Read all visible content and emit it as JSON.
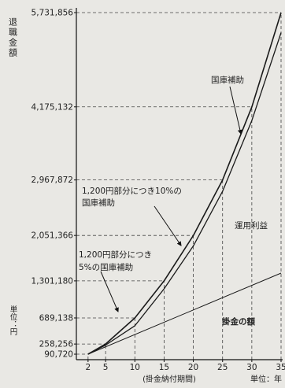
{
  "chart_data": {
    "type": "line",
    "ylabel": "退職金額",
    "ylabel_unit": "単位：円",
    "xlabel": "掛金納付期間",
    "xlabel_unit": "単位：年",
    "xlim": [
      0,
      35
    ],
    "ylim": [
      0,
      5731856
    ],
    "x_ticks": [
      2,
      5,
      10,
      15,
      20,
      25,
      30,
      35
    ],
    "x_tick_labels": [
      "2",
      "5",
      "10",
      "15",
      "20",
      "25",
      "30",
      "35"
    ],
    "y_ticks": [
      {
        "value": 90720,
        "label": "90,720"
      },
      {
        "value": 258256,
        "label": "258,256"
      },
      {
        "value": 689138,
        "label": "689,138"
      },
      {
        "value": 1301180,
        "label": "1,301,180"
      },
      {
        "value": 2051366,
        "label": "2,051,366"
      },
      {
        "value": 2967872,
        "label": "2,967,872"
      },
      {
        "value": 4175132,
        "label": "4,175,132"
      },
      {
        "value": 5731856,
        "label": "5,731,856"
      }
    ],
    "grid": "dashed guides at tick values",
    "series": [
      {
        "values": [
          [
            2,
            90720
          ],
          [
            5,
            258256
          ],
          [
            10,
            689138
          ],
          [
            15,
            1301180
          ],
          [
            20,
            2051366
          ],
          [
            25,
            2967872
          ],
          [
            30,
            4175132
          ],
          [
            35,
            5731856
          ]
        ]
      },
      {
        "values": [
          [
            2,
            90720
          ],
          [
            5,
            240000
          ],
          [
            10,
            560000
          ],
          [
            15,
            1170000
          ],
          [
            20,
            1880000
          ],
          [
            25,
            2780000
          ],
          [
            30,
            3950000
          ],
          [
            35,
            5400000
          ]
        ]
      },
      {
        "values": [
          [
            2,
            90720
          ],
          [
            35,
            1430000
          ]
        ]
      }
    ],
    "annotations": [
      {
        "text": "国庫補助"
      },
      {
        "text": "運用利益"
      },
      {
        "text": "掛金の額"
      },
      {
        "text": "1,200円部分につき10%の"
      },
      {
        "text": "国庫補助"
      },
      {
        "text": "1,200円部分につき"
      },
      {
        "text": "5%の国庫補助"
      }
    ]
  }
}
